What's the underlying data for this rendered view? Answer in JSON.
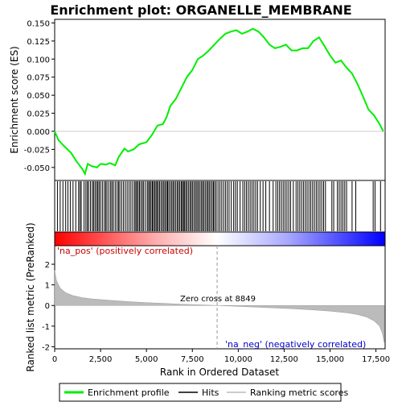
{
  "chart_data": {
    "type": "line",
    "title": "Enrichment plot: ORGANELLE_MEMBRANE",
    "es_panel": {
      "ylabel": "Enrichment score (ES)",
      "ylim": [
        -0.068,
        0.155
      ],
      "yticks": [
        -0.05,
        -0.025,
        0.0,
        0.025,
        0.05,
        0.075,
        0.1,
        0.125,
        0.15
      ],
      "ytick_labels": [
        "-0.050",
        "-0.025",
        "0.000",
        "0.025",
        "0.050",
        "0.075",
        "0.100",
        "0.125",
        "0.150"
      ],
      "series": [
        {
          "name": "Enrichment profile",
          "color": "#00ee00",
          "x": [
            0,
            200,
            500,
            900,
            1200,
            1500,
            1650,
            1800,
            2000,
            2300,
            2500,
            2800,
            3000,
            3300,
            3500,
            3800,
            4000,
            4300,
            4600,
            5000,
            5300,
            5600,
            5900,
            6100,
            6300,
            6600,
            6900,
            7200,
            7500,
            7800,
            8100,
            8400,
            8700,
            9000,
            9300,
            9600,
            9900,
            10200,
            10500,
            10800,
            11100,
            11400,
            11700,
            12000,
            12300,
            12600,
            12900,
            13200,
            13500,
            13800,
            14100,
            14400,
            14700,
            15000,
            15300,
            15600,
            15900,
            16200,
            16500,
            16800,
            17100,
            17400,
            17700,
            17900
          ],
          "y": [
            0.0,
            -0.012,
            -0.02,
            -0.03,
            -0.042,
            -0.052,
            -0.059,
            -0.045,
            -0.048,
            -0.05,
            -0.045,
            -0.046,
            -0.044,
            -0.047,
            -0.035,
            -0.024,
            -0.028,
            -0.025,
            -0.018,
            -0.015,
            -0.005,
            0.008,
            0.01,
            0.02,
            0.035,
            0.045,
            0.06,
            0.075,
            0.085,
            0.1,
            0.105,
            0.112,
            0.12,
            0.128,
            0.135,
            0.138,
            0.14,
            0.135,
            0.138,
            0.142,
            0.138,
            0.13,
            0.12,
            0.115,
            0.117,
            0.12,
            0.112,
            0.112,
            0.115,
            0.115,
            0.125,
            0.13,
            0.118,
            0.105,
            0.095,
            0.098,
            0.088,
            0.08,
            0.065,
            0.048,
            0.03,
            0.022,
            0.01,
            0.0
          ]
        }
      ]
    },
    "hits_panel": {
      "legend_hits": "Hits",
      "gradient_colors": [
        "#ff0000",
        "#ffffff",
        "#0000ff"
      ],
      "hit_positions": [
        150,
        300,
        450,
        600,
        720,
        850,
        1000,
        1150,
        1300,
        1380,
        1450,
        1600,
        1700,
        1780,
        1850,
        1950,
        2050,
        2120,
        2200,
        2280,
        2350,
        2420,
        2500,
        2600,
        2700,
        2780,
        2850,
        2950,
        3050,
        3120,
        3200,
        3300,
        3400,
        3480,
        3550,
        3650,
        3750,
        3850,
        3950,
        4050,
        4150,
        4250,
        4350,
        4420,
        4480,
        4550,
        4620,
        4700,
        4780,
        4850,
        4950,
        5050,
        5120,
        5180,
        5250,
        5320,
        5380,
        5450,
        5520,
        5580,
        5650,
        5720,
        5800,
        5880,
        5950,
        6020,
        6100,
        6150,
        6220,
        6300,
        6380,
        6450,
        6520,
        6600,
        6680,
        6750,
        6820,
        6900,
        6960,
        7020,
        7080,
        7150,
        7220,
        7300,
        7380,
        7450,
        7520,
        7600,
        7680,
        7750,
        7820,
        7900,
        7980,
        8050,
        8120,
        8200,
        8280,
        8350,
        8420,
        8500,
        8580,
        8650,
        8720,
        8800,
        8900,
        9000,
        9100,
        9200,
        9300,
        9400,
        9500,
        9620,
        9750,
        9850,
        9950,
        10100,
        10250,
        10350,
        10450,
        10550,
        10650,
        10750,
        10850,
        10950,
        11050,
        11200,
        11350,
        11500,
        11700,
        11900,
        12050,
        12150,
        12250,
        12350,
        12450,
        12550,
        12650,
        12750,
        12850,
        13000,
        13150,
        13250,
        13350,
        13450,
        13550,
        13650,
        13750,
        13850,
        13950,
        14050,
        14150,
        14250,
        14350,
        14450,
        14550,
        14650,
        14750,
        15100,
        15200,
        15400,
        15500,
        15600,
        15700,
        15800,
        15900,
        16200,
        16400,
        17350,
        17450,
        17750
      ]
    },
    "metric_panel": {
      "ylabel": "Ranked list metric (PreRanked)",
      "ylim": [
        -2.1,
        2.9
      ],
      "yticks": [
        -2,
        -1,
        0,
        1,
        2
      ],
      "ytick_labels": [
        "-2",
        "-1",
        "0",
        "1",
        "2"
      ],
      "metric_x": [
        0,
        100,
        300,
        600,
        1000,
        1500,
        2000,
        3000,
        4000,
        5000,
        6000,
        7000,
        8000,
        8849,
        10000,
        11000,
        12000,
        13000,
        14000,
        15000,
        16000,
        16500,
        17000,
        17400,
        17700,
        17850,
        17950
      ],
      "metric_y": [
        1.7,
        1.2,
        0.85,
        0.62,
        0.48,
        0.38,
        0.32,
        0.25,
        0.19,
        0.14,
        0.1,
        0.06,
        0.03,
        0.0,
        -0.04,
        -0.08,
        -0.12,
        -0.16,
        -0.21,
        -0.27,
        -0.36,
        -0.44,
        -0.56,
        -0.75,
        -1.0,
        -1.35,
        -1.8
      ],
      "pos_label": "'na_pos' (positively correlated)",
      "neg_label": "'na_neg' (negatively correlated)",
      "zero_cross_label": "Zero cross at 8849",
      "zero_cross": 8849
    },
    "xlabel": "Rank in Ordered Dataset",
    "xlim": [
      0,
      18000
    ],
    "xticks": [
      0,
      2500,
      5000,
      7500,
      10000,
      12500,
      15000,
      17500
    ],
    "xtick_labels": [
      "0",
      "2,500",
      "5,000",
      "7,500",
      "10,000",
      "12,500",
      "15,000",
      "17,500"
    ],
    "legend": [
      {
        "label": "Enrichment profile",
        "color": "#00ee00",
        "kind": "line"
      },
      {
        "label": "Hits",
        "color": "#000000",
        "kind": "line"
      },
      {
        "label": "Ranking metric scores",
        "color": "#bbbbbb",
        "kind": "line"
      }
    ],
    "grid": false,
    "legend_placement": "bottom"
  }
}
